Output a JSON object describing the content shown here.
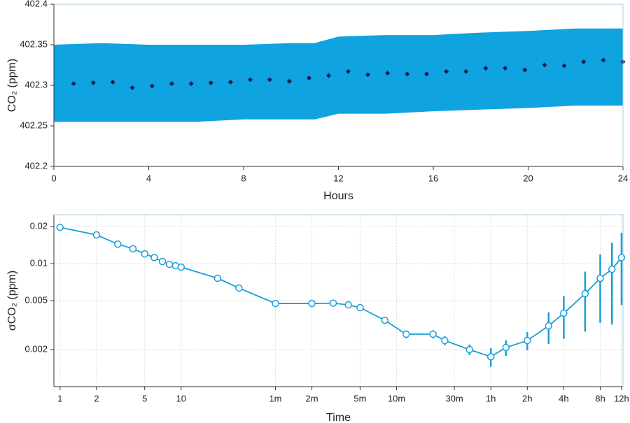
{
  "chart_data": [
    {
      "type": "scatter",
      "xlabel": "Hours",
      "ylabel": "CO₂ (ppm)",
      "x": [
        0.83,
        1.66,
        2.48,
        3.31,
        4.14,
        4.97,
        5.79,
        6.62,
        7.45,
        8.28,
        9.1,
        9.93,
        10.76,
        11.59,
        12.41,
        13.24,
        14.07,
        14.9,
        15.72,
        16.55,
        17.38,
        18.21,
        19.03,
        19.86,
        20.69,
        21.52,
        22.34,
        23.17,
        24
      ],
      "values": [
        402.302,
        402.303,
        402.304,
        402.297,
        402.299,
        402.302,
        402.302,
        402.303,
        402.304,
        402.307,
        402.307,
        402.305,
        402.309,
        402.312,
        402.317,
        402.313,
        402.315,
        402.314,
        402.314,
        402.317,
        402.317,
        402.321,
        402.321,
        402.319,
        402.325,
        402.324,
        402.329,
        402.331,
        402.329
      ],
      "color": "#1b1b4d",
      "band": {
        "color": "#0fa3df",
        "x": [
          0,
          2,
          4,
          6,
          8,
          10,
          11,
          12,
          14,
          16,
          18,
          20,
          22,
          24
        ],
        "upper": [
          402.35,
          402.352,
          402.35,
          402.35,
          402.35,
          402.352,
          402.352,
          402.36,
          402.362,
          402.362,
          402.365,
          402.367,
          402.37,
          402.37
        ],
        "lower": [
          402.255,
          402.255,
          402.255,
          402.255,
          402.258,
          402.258,
          402.258,
          402.265,
          402.265,
          402.268,
          402.27,
          402.272,
          402.275,
          402.275
        ]
      },
      "xlim": [
        0,
        24
      ],
      "xticks": [
        0,
        4,
        8,
        12,
        16,
        20,
        24
      ],
      "ylim": [
        402.2,
        402.4
      ],
      "yticks": [
        402.2,
        402.25,
        402.3,
        402.35,
        402.4
      ],
      "grid": false
    },
    {
      "type": "line",
      "xlabel": "Time",
      "ylabel": "σCO₂ (ppm)",
      "xscale": "log",
      "yscale": "log",
      "x": [
        1,
        2,
        3,
        4,
        5,
        6,
        7,
        8,
        9,
        10,
        20,
        30,
        60,
        120,
        180,
        240,
        300,
        480,
        720,
        1200,
        1500,
        2400,
        3600,
        4800,
        7200,
        10800,
        14400,
        21600,
        28800,
        36000,
        43200
      ],
      "values": [
        0.0197,
        0.0171,
        0.0144,
        0.0132,
        0.012,
        0.0112,
        0.0104,
        0.00987,
        0.00961,
        0.00936,
        0.0076,
        0.00633,
        0.00474,
        0.00474,
        0.00477,
        0.00462,
        0.00439,
        0.00346,
        0.00267,
        0.00267,
        0.00237,
        0.002,
        0.00175,
        0.00208,
        0.00237,
        0.00312,
        0.00395,
        0.0057,
        0.0076,
        0.009,
        0.0112
      ],
      "errors": [
        null,
        null,
        null,
        null,
        null,
        null,
        null,
        null,
        null,
        null,
        null,
        null,
        null,
        null,
        null,
        null,
        0.0001,
        0.0002,
        0.0002,
        0.0002,
        0.0002,
        0.0002,
        0.0003,
        0.0003,
        0.0004,
        0.0009,
        0.0015,
        0.0029,
        0.0043,
        0.0058,
        0.0066
      ],
      "color": "#1a9ed8",
      "xlim": [
        0.89,
        44400
      ],
      "xticks": [
        1,
        2,
        5,
        10,
        {
          "value": 60,
          "label": "1m"
        },
        {
          "value": 120,
          "label": "2m"
        },
        {
          "value": 300,
          "label": "5m"
        },
        {
          "value": 600,
          "label": "10m"
        },
        {
          "value": 1800,
          "label": "30m"
        },
        {
          "value": 3600,
          "label": "1h"
        },
        {
          "value": 7200,
          "label": "2h"
        },
        {
          "value": 14400,
          "label": "4h"
        },
        {
          "value": 28800,
          "label": "8h"
        },
        {
          "value": 43200,
          "label": "12h"
        }
      ],
      "ylim": [
        0.001,
        0.025
      ],
      "yticks": [
        0.02,
        0.01,
        0.005,
        0.002
      ],
      "grid": true
    }
  ]
}
